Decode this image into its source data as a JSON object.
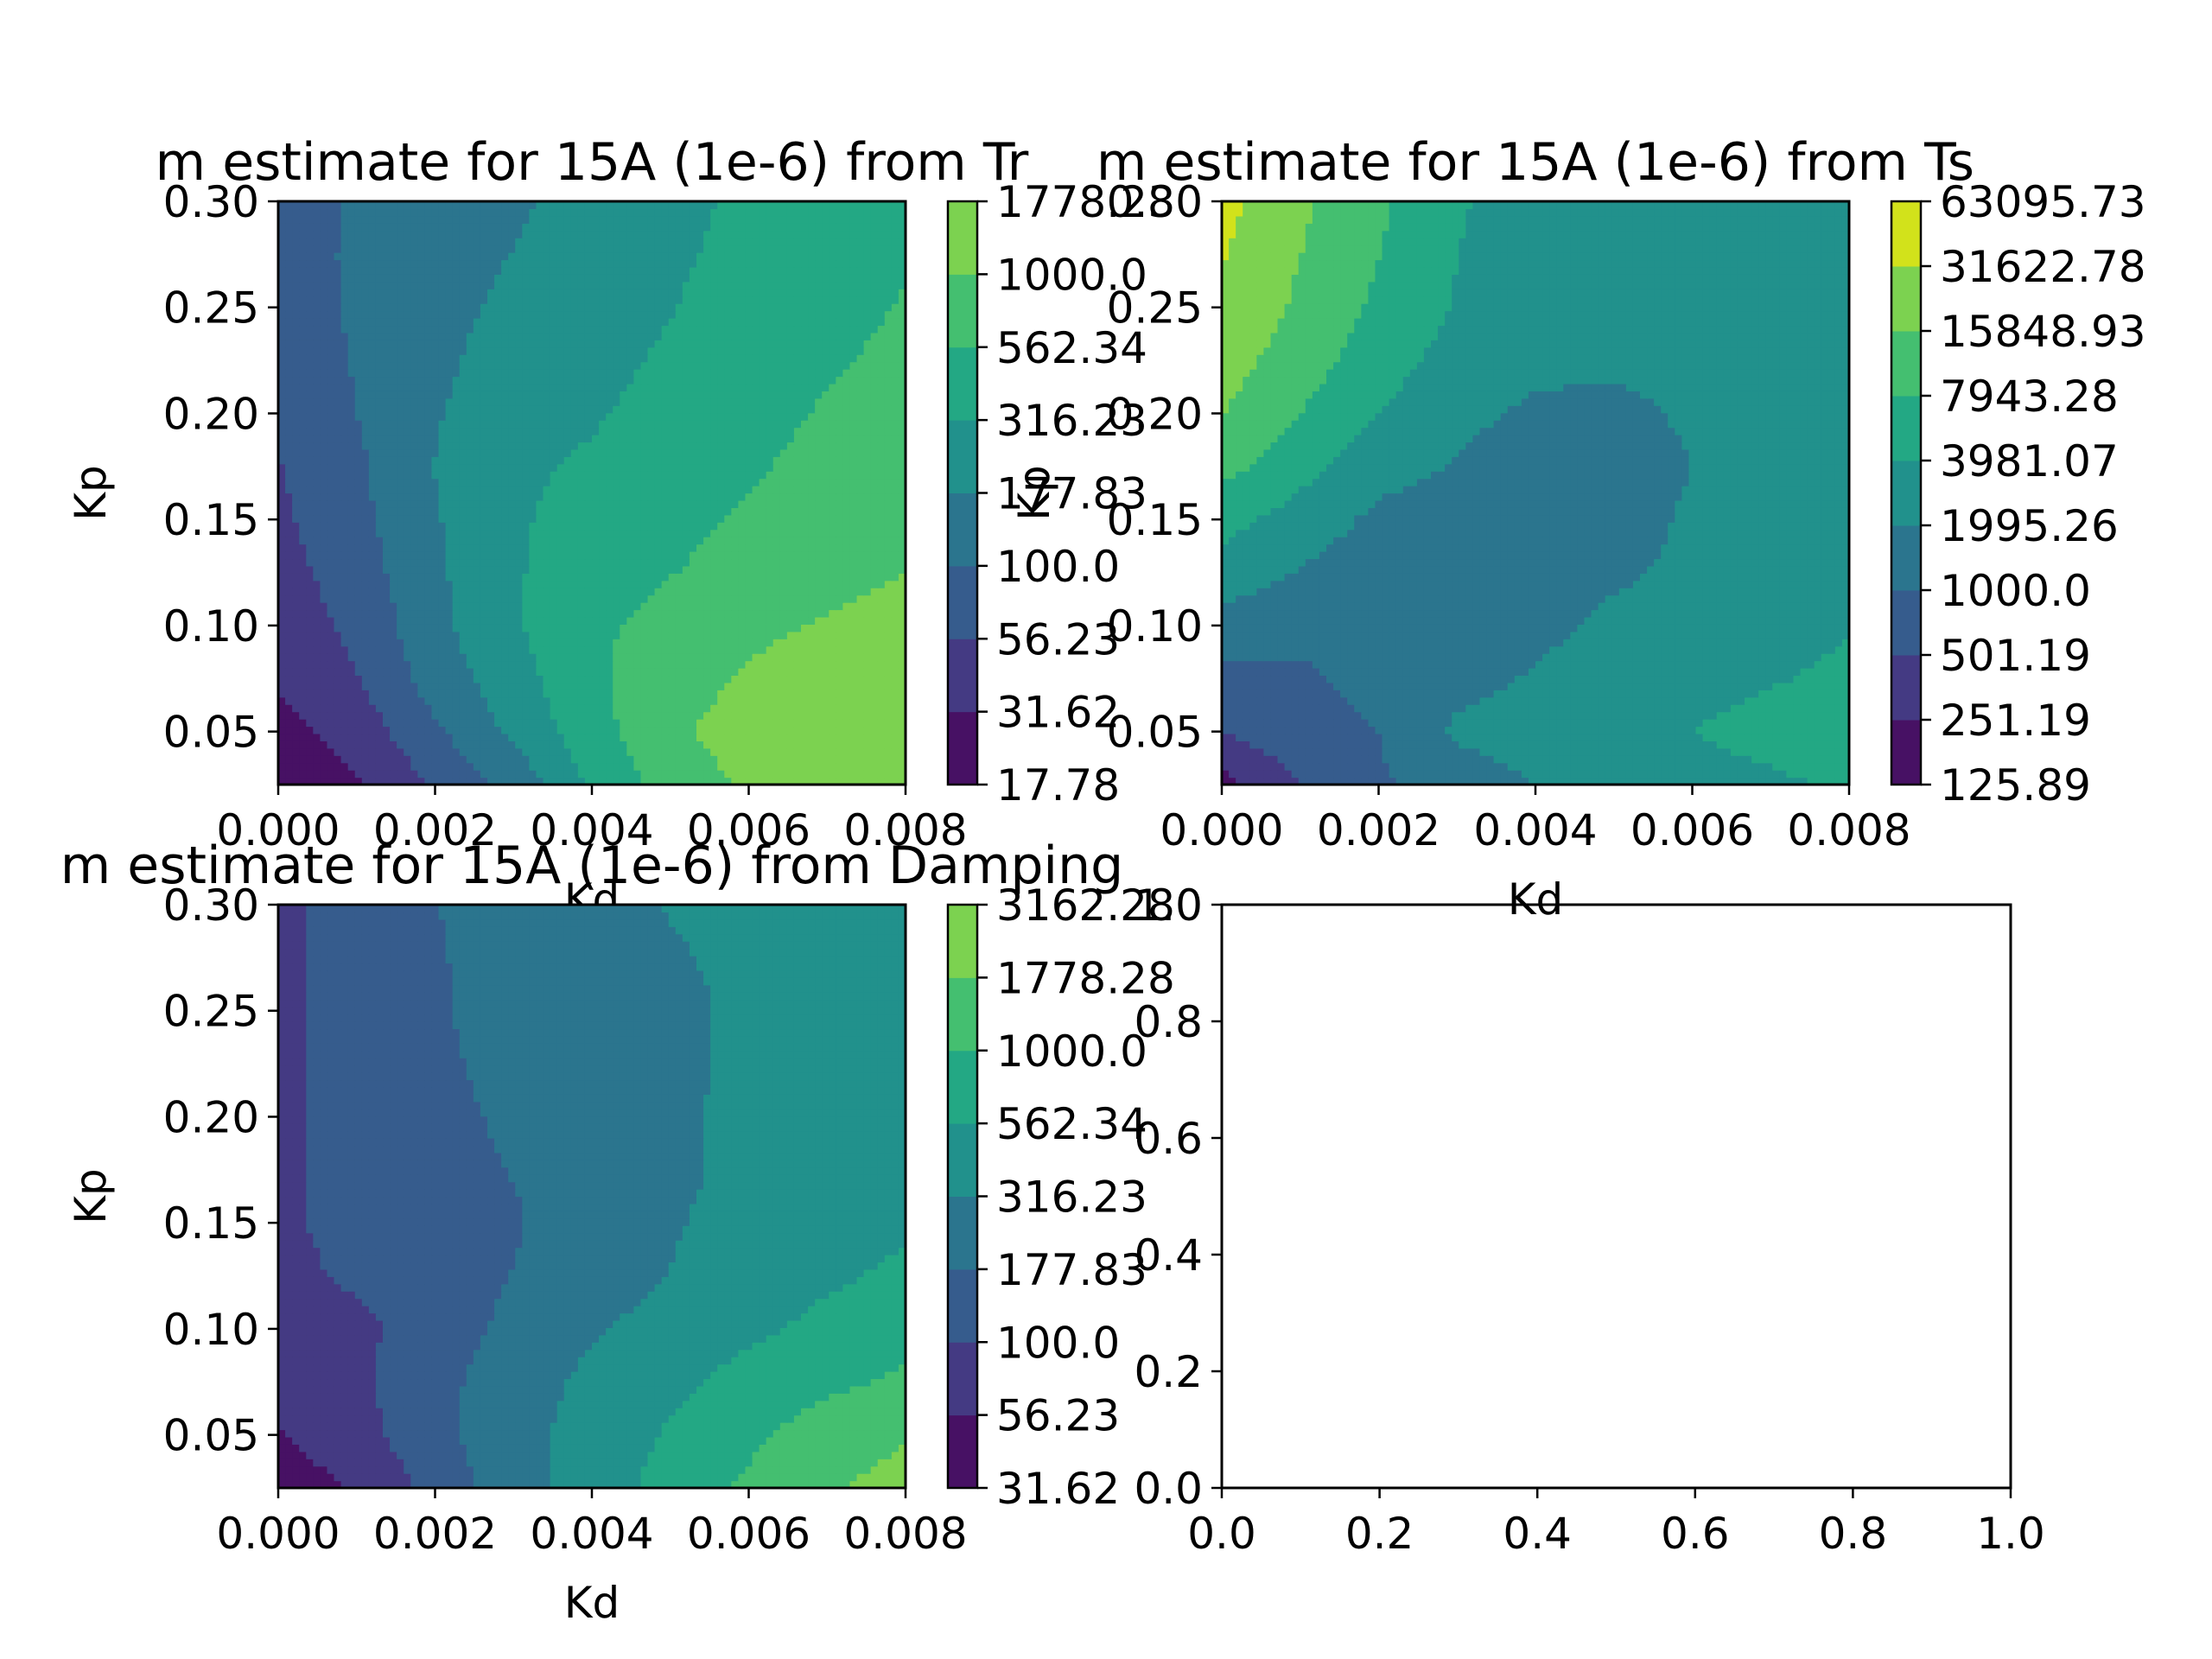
{
  "figure": {
    "colormap": [
      "#440154",
      "#482878",
      "#3e4989",
      "#31688e",
      "#26828e",
      "#1f9e89",
      "#35b779",
      "#6ece58",
      "#b5de2b",
      "#fde725"
    ],
    "contour_colors": [
      "#471164",
      "#443a83",
      "#365c8d",
      "#2b758e",
      "#21918c",
      "#23a884",
      "#44bf70",
      "#7cd250",
      "#d2e21b"
    ]
  },
  "chart_data": [
    {
      "id": "tr",
      "type": "heatmap",
      "title": "m estimate for 15A (1e-6) from Tr",
      "xlabel": "Kd",
      "ylabel": "Kp",
      "x": [
        0.0,
        0.001,
        0.002,
        0.003,
        0.004,
        0.005,
        0.006,
        0.007,
        0.008
      ],
      "y": [
        0.025,
        0.05,
        0.075,
        0.1,
        0.125,
        0.15,
        0.175,
        0.2,
        0.225,
        0.25,
        0.275,
        0.3
      ],
      "xlim": [
        0.0,
        0.008
      ],
      "ylim": [
        0.025,
        0.3
      ],
      "xticks": [
        "0.000",
        "0.002",
        "0.004",
        "0.006",
        "0.008"
      ],
      "xtick_values": [
        0.0,
        0.002,
        0.004,
        0.006,
        0.008
      ],
      "yticks": [
        "0.05",
        "0.10",
        "0.15",
        "0.20",
        "0.25",
        "0.30"
      ],
      "ytick_values": [
        0.05,
        0.1,
        0.15,
        0.2,
        0.25,
        0.3
      ],
      "colorbar_levels": [
        "17.78",
        "31.62",
        "56.23",
        "100.0",
        "177.83",
        "316.23",
        "562.34",
        "1000.0",
        "1778.28"
      ],
      "levels": [
        17.78,
        31.62,
        56.23,
        100.0,
        177.83,
        316.23,
        562.34,
        1000.0,
        1778.28
      ],
      "z": [
        [
          20,
          30,
          60,
          120,
          350,
          700,
          1100,
          1500,
          1700
        ],
        [
          25,
          40,
          90,
          200,
          450,
          900,
          1300,
          1500,
          1600
        ],
        [
          35,
          55,
          130,
          250,
          500,
          800,
          1050,
          1300,
          1450
        ],
        [
          40,
          65,
          150,
          300,
          500,
          700,
          900,
          1050,
          1200
        ],
        [
          45,
          75,
          160,
          300,
          420,
          550,
          700,
          850,
          1000
        ],
        [
          50,
          85,
          170,
          300,
          370,
          480,
          600,
          740,
          880
        ],
        [
          55,
          90,
          180,
          290,
          340,
          430,
          530,
          650,
          770
        ],
        [
          60,
          100,
          170,
          250,
          300,
          380,
          480,
          590,
          700
        ],
        [
          65,
          105,
          160,
          220,
          270,
          340,
          430,
          530,
          630
        ],
        [
          70,
          110,
          150,
          200,
          250,
          310,
          400,
          480,
          580
        ],
        [
          75,
          110,
          140,
          180,
          230,
          290,
          370,
          450,
          540
        ],
        [
          80,
          105,
          130,
          165,
          215,
          275,
          350,
          430,
          520
        ]
      ]
    },
    {
      "id": "ts",
      "type": "heatmap",
      "title": "m estimate for 15A (1e-6) from Ts",
      "xlabel": "Kd",
      "ylabel": "Kp",
      "x": [
        0.0,
        0.001,
        0.002,
        0.003,
        0.004,
        0.005,
        0.006,
        0.007,
        0.008
      ],
      "y": [
        0.025,
        0.05,
        0.075,
        0.1,
        0.125,
        0.15,
        0.175,
        0.2,
        0.225,
        0.25,
        0.275,
        0.3
      ],
      "xlim": [
        0.0,
        0.008
      ],
      "ylim": [
        0.025,
        0.3
      ],
      "xticks": [
        "0.000",
        "0.002",
        "0.004",
        "0.006",
        "0.008"
      ],
      "xtick_values": [
        0.0,
        0.002,
        0.004,
        0.006,
        0.008
      ],
      "yticks": [
        "0.05",
        "0.10",
        "0.15",
        "0.20",
        "0.25",
        "0.30"
      ],
      "ytick_values": [
        0.05,
        0.1,
        0.15,
        0.2,
        0.25,
        0.3
      ],
      "colorbar_levels": [
        "125.89",
        "251.19",
        "501.19",
        "1000.0",
        "1995.26",
        "3981.07",
        "7943.28",
        "15848.93",
        "31622.78",
        "63095.73"
      ],
      "levels": [
        125.89,
        251.19,
        501.19,
        1000.0,
        1995.26,
        3981.07,
        7943.28,
        15848.93,
        31622.78,
        63095.73
      ],
      "z": [
        [
          200,
          500,
          900,
          1500,
          2000,
          2600,
          3000,
          3500,
          4500
        ],
        [
          500,
          800,
          1000,
          2200,
          2500,
          3000,
          4000,
          5000,
          6000
        ],
        [
          800,
          900,
          1200,
          1700,
          2100,
          2800,
          3200,
          3800,
          4500
        ],
        [
          1500,
          1200,
          1100,
          1500,
          1700,
          2300,
          2700,
          3300,
          3800
        ],
        [
          3000,
          1900,
          1300,
          1400,
          1500,
          1800,
          2300,
          2800,
          3300
        ],
        [
          5000,
          3000,
          1700,
          1500,
          1400,
          1500,
          2200,
          2700,
          3000
        ],
        [
          10000,
          5000,
          2500,
          1900,
          1500,
          1400,
          2000,
          2500,
          2800
        ],
        [
          16000,
          8000,
          4000,
          2300,
          1800,
          1700,
          2200,
          2500,
          2700
        ],
        [
          22000,
          11000,
          5500,
          3000,
          2300,
          2200,
          2400,
          2600,
          2700
        ],
        [
          28000,
          14000,
          7000,
          3800,
          2800,
          2500,
          2600,
          2700,
          2800
        ],
        [
          33000,
          16000,
          8000,
          4000,
          3000,
          2700,
          2700,
          2800,
          2800
        ],
        [
          40000,
          18000,
          9000,
          4200,
          3100,
          2800,
          2800,
          2800,
          2900
        ]
      ]
    },
    {
      "id": "damping",
      "type": "heatmap",
      "title": "m estimate for 15A (1e-6) from Damping",
      "xlabel": "Kd",
      "ylabel": "Kp",
      "x": [
        0.0,
        0.001,
        0.002,
        0.003,
        0.004,
        0.005,
        0.006,
        0.007,
        0.008
      ],
      "y": [
        0.025,
        0.05,
        0.075,
        0.1,
        0.125,
        0.15,
        0.175,
        0.2,
        0.225,
        0.25,
        0.275,
        0.3
      ],
      "xlim": [
        0.0,
        0.008
      ],
      "ylim": [
        0.025,
        0.3
      ],
      "xticks": [
        "0.000",
        "0.002",
        "0.004",
        "0.006",
        "0.008"
      ],
      "xtick_values": [
        0.0,
        0.002,
        0.004,
        0.006,
        0.008
      ],
      "yticks": [
        "0.05",
        "0.10",
        "0.15",
        "0.20",
        "0.25",
        "0.30"
      ],
      "ytick_values": [
        0.05,
        0.1,
        0.15,
        0.2,
        0.25,
        0.3
      ],
      "colorbar_levels": [
        "31.62",
        "56.23",
        "100.0",
        "177.83",
        "316.23",
        "562.34",
        "1000.0",
        "1778.28",
        "3162.28"
      ],
      "levels": [
        31.62,
        56.23,
        100.0,
        177.83,
        316.23,
        562.34,
        1000.0,
        1778.28,
        3162.28
      ],
      "z": [
        [
          40,
          60,
          120,
          250,
          420,
          700,
          1100,
          1700,
          2200
        ],
        [
          55,
          80,
          150,
          260,
          400,
          600,
          900,
          1300,
          1700
        ],
        [
          65,
          90,
          150,
          240,
          360,
          480,
          700,
          900,
          1100
        ],
        [
          75,
          85,
          140,
          200,
          300,
          380,
          500,
          650,
          800
        ],
        [
          85,
          110,
          140,
          180,
          250,
          320,
          420,
          520,
          620
        ],
        [
          90,
          120,
          150,
          170,
          230,
          300,
          380,
          450,
          520
        ],
        [
          90,
          120,
          160,
          180,
          230,
          290,
          350,
          410,
          460
        ],
        [
          90,
          125,
          160,
          190,
          240,
          300,
          340,
          390,
          430
        ],
        [
          90,
          125,
          165,
          200,
          250,
          300,
          330,
          370,
          410
        ],
        [
          90,
          125,
          170,
          210,
          260,
          300,
          330,
          360,
          390
        ],
        [
          90,
          125,
          170,
          220,
          270,
          310,
          330,
          350,
          380
        ],
        [
          90,
          125,
          175,
          225,
          280,
          320,
          330,
          345,
          370
        ]
      ]
    },
    {
      "id": "empty",
      "type": "line",
      "title": "",
      "xlabel": "",
      "ylabel": "",
      "xlim": [
        0.0,
        1.0
      ],
      "ylim": [
        0.0,
        1.0
      ],
      "xticks": [
        "0.0",
        "0.2",
        "0.4",
        "0.6",
        "0.8",
        "1.0"
      ],
      "xtick_values": [
        0.0,
        0.2,
        0.4,
        0.6,
        0.8,
        1.0
      ],
      "yticks": [
        "0.0",
        "0.2",
        "0.4",
        "0.6",
        "0.8",
        "1.0"
      ],
      "ytick_values": [
        0.0,
        0.2,
        0.4,
        0.6,
        0.8,
        1.0
      ],
      "series": []
    }
  ]
}
